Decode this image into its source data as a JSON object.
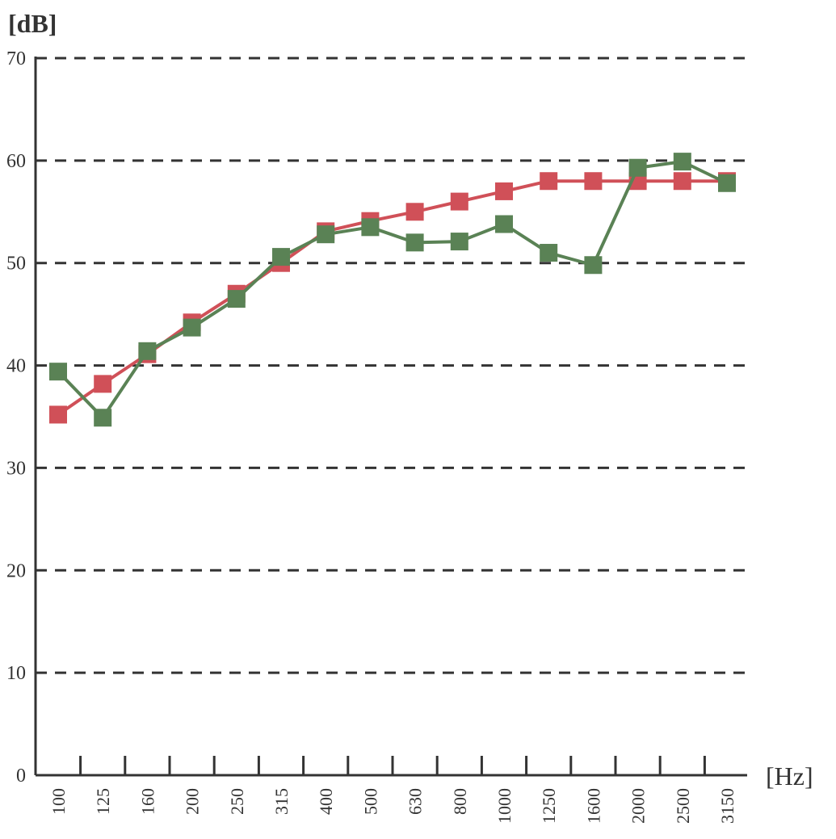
{
  "chart_data": {
    "type": "line",
    "title": "",
    "ylabel": "[dB]",
    "xlabel": "[Hz]",
    "categories": [
      "100",
      "125",
      "160",
      "200",
      "250",
      "315",
      "400",
      "500",
      "630",
      "800",
      "1000",
      "1250",
      "1600",
      "2000",
      "2500",
      "3150"
    ],
    "ylim": [
      0,
      70
    ],
    "yticks": [
      0,
      10,
      20,
      30,
      40,
      50,
      60,
      70
    ],
    "grid": "horizontal-dashed",
    "series": [
      {
        "color": "#d05058",
        "marker": "square",
        "values": [
          35.2,
          38.2,
          41.1,
          44.2,
          47.0,
          50.0,
          53.1,
          54.1,
          55.0,
          56.0,
          57.0,
          58.0,
          58.0,
          58.0,
          58.0,
          58.0
        ]
      },
      {
        "color": "#5a8255",
        "marker": "square",
        "values": [
          39.4,
          34.9,
          41.4,
          43.7,
          46.5,
          50.6,
          52.8,
          53.5,
          52.0,
          52.1,
          53.8,
          51.0,
          49.8,
          59.3,
          59.9,
          57.8
        ]
      }
    ]
  }
}
